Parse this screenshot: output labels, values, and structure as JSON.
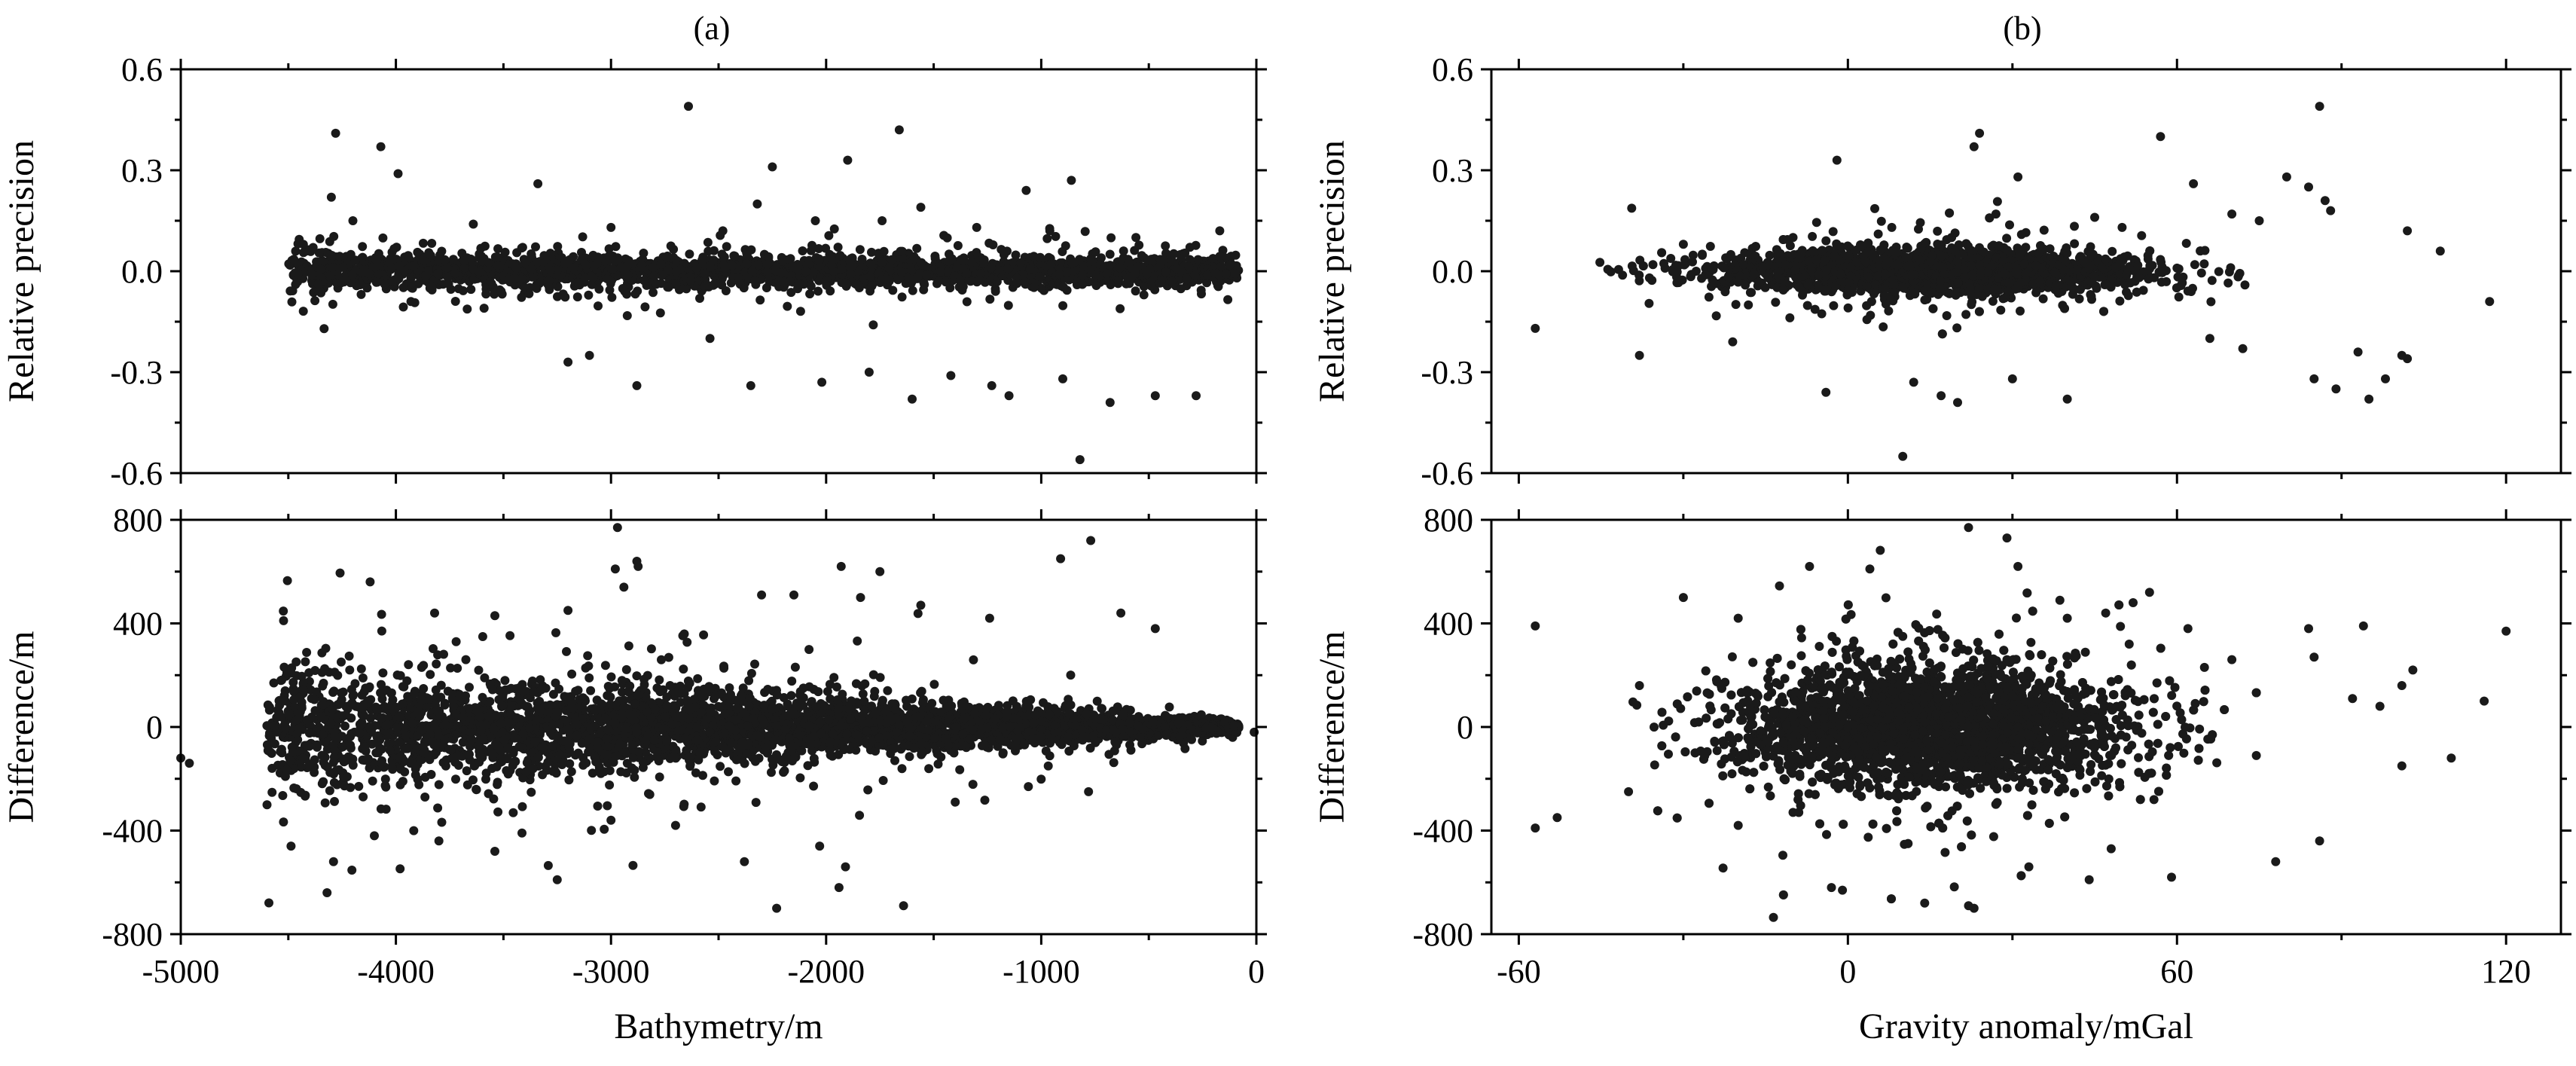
{
  "figure": {
    "panel_a_label": "(a)",
    "panel_b_label": "(b)"
  },
  "chart_data": [
    {
      "type": "scatter",
      "id": "a-top",
      "xlabel": "",
      "ylabel": "Relative precision",
      "xlim": [
        -5000,
        0
      ],
      "ylim": [
        -0.6,
        0.6
      ],
      "xticks": [
        -5000,
        -4000,
        -3000,
        -2000,
        -1000,
        0
      ],
      "xtick_labels": [],
      "yticks": [
        -0.6,
        -0.3,
        0.0,
        0.3,
        0.6
      ],
      "ytick_labels": [
        "-0.6",
        "-0.3",
        "0.0",
        "0.3",
        "0.6"
      ],
      "grid": false,
      "sample_size": 2400,
      "distribution": {
        "x_dense_from": -4500,
        "x_to": -80,
        "center": 0,
        "spread_near_deep": 0.03,
        "spread_near_shallow": 0.02
      },
      "points": [
        [
          -4280,
          0.41
        ],
        [
          -4070,
          0.37
        ],
        [
          -3990,
          0.29
        ],
        [
          -2640,
          0.49
        ],
        [
          -1660,
          0.42
        ],
        [
          -2250,
          0.31
        ],
        [
          -1900,
          0.33
        ],
        [
          -3340,
          0.26
        ],
        [
          -1070,
          0.24
        ],
        [
          -860,
          0.27
        ],
        [
          -4300,
          0.22
        ],
        [
          -2320,
          0.2
        ],
        [
          -1560,
          0.19
        ],
        [
          -3200,
          -0.27
        ],
        [
          -2880,
          -0.34
        ],
        [
          -2350,
          -0.34
        ],
        [
          -2020,
          -0.33
        ],
        [
          -1600,
          -0.38
        ],
        [
          -1230,
          -0.34
        ],
        [
          -900,
          -0.32
        ],
        [
          -680,
          -0.39
        ],
        [
          -470,
          -0.37
        ],
        [
          -280,
          -0.37
        ],
        [
          -820,
          -0.56
        ],
        [
          -3100,
          -0.25
        ],
        [
          -1800,
          -0.3
        ],
        [
          -1420,
          -0.31
        ],
        [
          -1150,
          -0.37
        ],
        [
          -4200,
          0.15
        ],
        [
          -3640,
          0.14
        ],
        [
          -3000,
          0.13
        ],
        [
          -2480,
          0.12
        ],
        [
          -2050,
          0.15
        ],
        [
          -1740,
          0.15
        ],
        [
          -1300,
          0.13
        ],
        [
          -960,
          0.12
        ],
        [
          -560,
          0.1
        ],
        [
          -170,
          0.12
        ],
        [
          -2540,
          -0.2
        ],
        [
          -3590,
          -0.11
        ],
        [
          -3930,
          -0.09
        ]
      ]
    },
    {
      "type": "scatter",
      "id": "a-bottom",
      "xlabel": "Bathymetry/m",
      "ylabel": "Difference/m",
      "xlim": [
        -5000,
        0
      ],
      "ylim": [
        -800,
        800
      ],
      "xticks": [
        -5000,
        -4000,
        -3000,
        -2000,
        -1000,
        0
      ],
      "xtick_labels": [
        "-5000",
        "-4000",
        "-3000",
        "-2000",
        "-1000",
        "0"
      ],
      "yticks": [
        -800,
        -400,
        0,
        400,
        800
      ],
      "ytick_labels": [
        "-800",
        "-400",
        "0",
        "400",
        "800"
      ],
      "grid": false,
      "sample_size": 4200,
      "distribution": {
        "x_dense_from": -4600,
        "x_to": -80,
        "center": 0,
        "spread_near_deep": 120,
        "spread_near_shallow": 10
      },
      "points": [
        [
          -2970,
          770
        ],
        [
          -2880,
          640
        ],
        [
          -2980,
          610
        ],
        [
          -2940,
          540
        ],
        [
          -2300,
          510
        ],
        [
          -1930,
          620
        ],
        [
          -1750,
          600
        ],
        [
          -910,
          650
        ],
        [
          -770,
          720
        ],
        [
          -630,
          440
        ],
        [
          -2150,
          510
        ],
        [
          -1840,
          500
        ],
        [
          -1560,
          470
        ],
        [
          -1240,
          420
        ],
        [
          -3200,
          450
        ],
        [
          -3540,
          430
        ],
        [
          -3820,
          440
        ],
        [
          -4320,
          -640
        ],
        [
          -4290,
          -520
        ],
        [
          -3540,
          -480
        ],
        [
          -3250,
          -590
        ],
        [
          -3000,
          -360
        ],
        [
          -2230,
          -700
        ],
        [
          -1940,
          -620
        ],
        [
          -1910,
          -540
        ],
        [
          -1640,
          -690
        ],
        [
          -2380,
          -520
        ],
        [
          -2030,
          -460
        ],
        [
          -1060,
          -230
        ],
        [
          -780,
          -250
        ],
        [
          -4100,
          -420
        ],
        [
          -3800,
          -440
        ],
        [
          -2700,
          -380
        ],
        [
          -1400,
          -290
        ],
        [
          -470,
          380
        ],
        [
          -5000,
          -120
        ],
        [
          -4960,
          -140
        ],
        [
          -10,
          -20
        ]
      ]
    },
    {
      "type": "scatter",
      "id": "b-top",
      "xlabel": "",
      "ylabel": "Relative precision",
      "xlim": [
        -65,
        130
      ],
      "ylim": [
        -0.6,
        0.6
      ],
      "xticks": [
        -60,
        0,
        60,
        120
      ],
      "xtick_labels": [],
      "yticks": [
        -0.6,
        -0.3,
        0.0,
        0.3,
        0.6
      ],
      "ytick_labels": [
        "-0.6",
        "-0.3",
        "0.0",
        "0.3",
        "0.6"
      ],
      "grid": false,
      "sample_size": 2400,
      "distribution": {
        "x_center": 15,
        "x_sd": 20,
        "x_min": -57,
        "x_max": 75,
        "center": 0,
        "spread": 0.03
      },
      "points": [
        [
          -2,
          0.33
        ],
        [
          24,
          0.41
        ],
        [
          23,
          0.37
        ],
        [
          31,
          0.28
        ],
        [
          57,
          0.4
        ],
        [
          86,
          0.49
        ],
        [
          80,
          0.28
        ],
        [
          84,
          0.25
        ],
        [
          87,
          0.21
        ],
        [
          88,
          0.18
        ],
        [
          -57,
          -0.17
        ],
        [
          -38,
          -0.25
        ],
        [
          -21,
          -0.21
        ],
        [
          -4,
          -0.36
        ],
        [
          10,
          -0.55
        ],
        [
          12,
          -0.33
        ],
        [
          17,
          -0.37
        ],
        [
          20,
          -0.39
        ],
        [
          30,
          -0.32
        ],
        [
          40,
          -0.38
        ],
        [
          85,
          -0.32
        ],
        [
          89,
          -0.35
        ],
        [
          93,
          -0.24
        ],
        [
          95,
          -0.38
        ],
        [
          98,
          -0.32
        ],
        [
          101,
          -0.25
        ],
        [
          102,
          -0.26
        ],
        [
          102,
          0.12
        ],
        [
          108,
          0.06
        ],
        [
          117,
          -0.09
        ],
        [
          63,
          0.26
        ],
        [
          70,
          0.17
        ],
        [
          75,
          0.15
        ],
        [
          45,
          0.16
        ],
        [
          50,
          0.13
        ],
        [
          8,
          0.13
        ],
        [
          27,
          0.17
        ],
        [
          -10,
          0.1
        ],
        [
          -30,
          0.08
        ],
        [
          66,
          -0.2
        ],
        [
          72,
          -0.23
        ]
      ]
    },
    {
      "type": "scatter",
      "id": "b-bottom",
      "xlabel": "Gravity anomaly/mGal",
      "ylabel": "Difference/m",
      "xlim": [
        -65,
        130
      ],
      "ylim": [
        -800,
        800
      ],
      "xticks": [
        -60,
        0,
        60,
        120
      ],
      "xtick_labels": [
        "-60",
        "0",
        "60",
        "120"
      ],
      "yticks": [
        -800,
        -400,
        0,
        400,
        800
      ],
      "ytick_labels": [
        "-800",
        "-400",
        "0",
        "400",
        "800"
      ],
      "grid": false,
      "sample_size": 4200,
      "distribution": {
        "x_center": 15,
        "x_sd": 18,
        "x_min": -57,
        "x_max": 75,
        "center": 0,
        "spread": 110
      },
      "points": [
        [
          22,
          770
        ],
        [
          29,
          730
        ],
        [
          31,
          620
        ],
        [
          -57,
          390
        ],
        [
          -30,
          500
        ],
        [
          -7,
          620
        ],
        [
          4,
          610
        ],
        [
          -57,
          -390
        ],
        [
          -53,
          -350
        ],
        [
          -3,
          -620
        ],
        [
          -1,
          -630
        ],
        [
          14,
          -680
        ],
        [
          22,
          -690
        ],
        [
          23,
          -700
        ],
        [
          44,
          -590
        ],
        [
          59,
          -580
        ],
        [
          78,
          -520
        ],
        [
          86,
          -440
        ],
        [
          84,
          380
        ],
        [
          94,
          390
        ],
        [
          85,
          270
        ],
        [
          101,
          160
        ],
        [
          103,
          220
        ],
        [
          101,
          -150
        ],
        [
          110,
          -120
        ],
        [
          116,
          100
        ],
        [
          120,
          370
        ],
        [
          92,
          110
        ],
        [
          97,
          80
        ],
        [
          70,
          260
        ],
        [
          65,
          230
        ],
        [
          62,
          380
        ],
        [
          55,
          520
        ],
        [
          52,
          480
        ],
        [
          47,
          440
        ],
        [
          40,
          420
        ],
        [
          10,
          350
        ],
        [
          -20,
          420
        ],
        [
          -38,
          160
        ],
        [
          -40,
          -250
        ],
        [
          -20,
          -380
        ],
        [
          -10,
          -330
        ],
        [
          33,
          -540
        ],
        [
          48,
          -470
        ]
      ]
    }
  ]
}
